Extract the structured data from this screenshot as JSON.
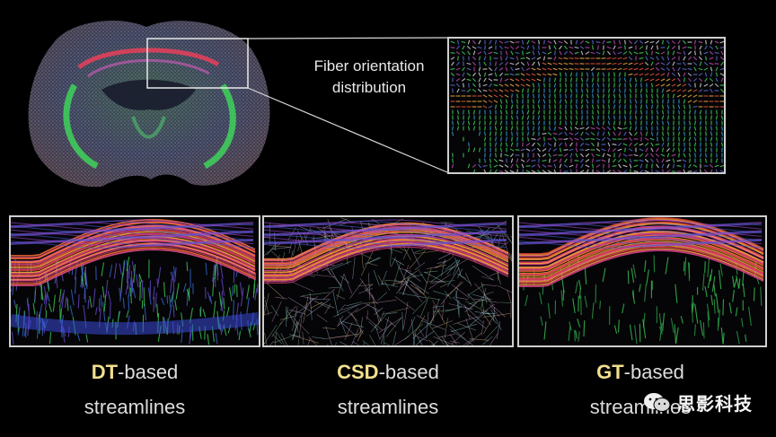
{
  "callout": {
    "line1": "Fiber orientation",
    "line2": "distribution"
  },
  "panels": [
    {
      "highlight": "DT",
      "suffix": "-based",
      "line2": "streamlines"
    },
    {
      "highlight": "CSD",
      "suffix": "-based",
      "line2": "streamlines"
    },
    {
      "highlight": "GT",
      "suffix": "-based",
      "line2": "streamlines"
    }
  ],
  "watermark": {
    "text": "思影科技",
    "icon": "wechat-icon"
  },
  "colors": {
    "background": "#000000",
    "frame": "#cfcfcf",
    "highlight": "#f2df8e",
    "label": "#dddddd"
  }
}
